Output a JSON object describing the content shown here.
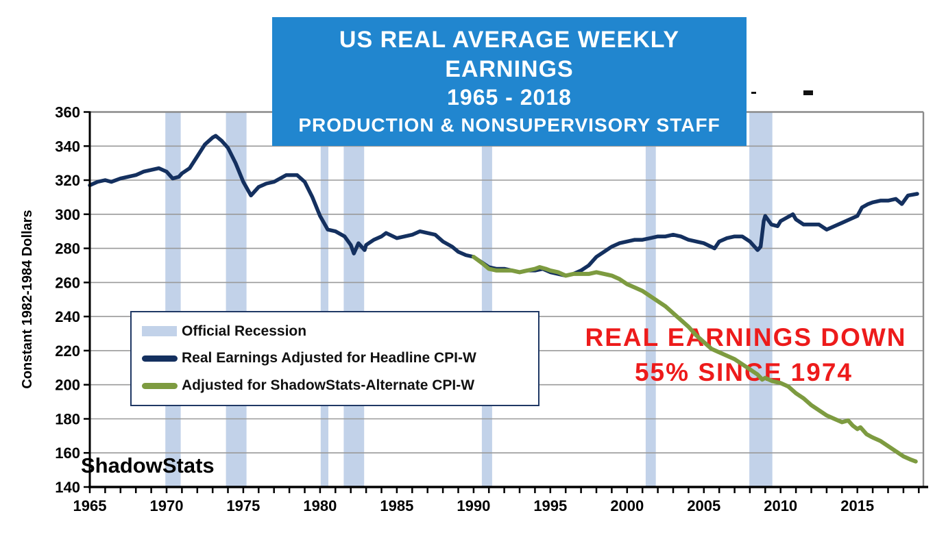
{
  "title_box": {
    "line1": "US REAL AVERAGE WEEKLY EARNINGS",
    "line2": "1965 - 2018",
    "line3": "PRODUCTION & NONSUPERVISORY STAFF"
  },
  "annotation": {
    "line1": "REAL EARNINGS DOWN",
    "line2": "55% SINCE 1974"
  },
  "watermark": "ShadowStats",
  "legend": {
    "items": [
      {
        "label": "Official Recession",
        "swatch": "band"
      },
      {
        "label": "Real Earnings Adjusted for Headline CPI-W",
        "swatch": "line-navy"
      },
      {
        "label": "Adjusted for ShadowStats-Alternate CPI-W",
        "swatch": "line-green"
      }
    ]
  },
  "colors": {
    "title_bg": "#2186cf",
    "annotation_red": "#ed1b1b",
    "recession_band": "#c2d2e9",
    "navy_line": "#14305f",
    "green_line": "#7d9b40",
    "grid": "#999999",
    "plot_border": "#8a8a8a",
    "axis": "#000000"
  },
  "chart_data": {
    "type": "line",
    "title": "US REAL AVERAGE WEEKLY EARNINGS 1965 - 2018, PRODUCTION & NONSUPERVISORY STAFF",
    "xlabel": "",
    "ylabel": "Constant 1982-1984 Dollars",
    "x_range": [
      1965,
      2019.3
    ],
    "y_range": [
      140,
      360
    ],
    "grid": "horizontal",
    "legend_position": "lower-left",
    "y_ticks": [
      360,
      340,
      320,
      300,
      280,
      260,
      240,
      220,
      200,
      180,
      160,
      140
    ],
    "x_tick_labels": [
      1965,
      1970,
      1975,
      1980,
      1985,
      1990,
      1995,
      2000,
      2005,
      2010,
      2015
    ],
    "x_minor_tick_step": 1,
    "recessions": [
      [
        1969.92,
        1970.92
      ],
      [
        1973.87,
        1975.21
      ],
      [
        1980.04,
        1980.54
      ],
      [
        1981.54,
        1982.87
      ],
      [
        1990.54,
        1991.21
      ],
      [
        2001.21,
        2001.87
      ],
      [
        2007.96,
        2009.46
      ]
    ],
    "series": [
      {
        "name": "Real Earnings Adjusted for Headline CPI-W",
        "color_key": "navy_line",
        "width": 5.5,
        "points": [
          [
            1965,
            317
          ],
          [
            1965.5,
            319
          ],
          [
            1966,
            320
          ],
          [
            1966.4,
            319
          ],
          [
            1967,
            321
          ],
          [
            1967.5,
            322
          ],
          [
            1968,
            323
          ],
          [
            1968.5,
            325
          ],
          [
            1969,
            326
          ],
          [
            1969.5,
            327
          ],
          [
            1970,
            325
          ],
          [
            1970.4,
            321
          ],
          [
            1970.8,
            322
          ],
          [
            1971,
            324
          ],
          [
            1971.5,
            327
          ],
          [
            1972,
            334
          ],
          [
            1972.5,
            341
          ],
          [
            1973,
            345
          ],
          [
            1973.2,
            346
          ],
          [
            1973.6,
            343
          ],
          [
            1974,
            339
          ],
          [
            1974.5,
            330
          ],
          [
            1975,
            319
          ],
          [
            1975.5,
            311
          ],
          [
            1976,
            316
          ],
          [
            1976.5,
            318
          ],
          [
            1977,
            319
          ],
          [
            1977.8,
            323
          ],
          [
            1978.5,
            323
          ],
          [
            1979,
            319
          ],
          [
            1979.5,
            310
          ],
          [
            1980,
            299
          ],
          [
            1980.5,
            291
          ],
          [
            1981,
            290
          ],
          [
            1981.6,
            287
          ],
          [
            1982,
            282
          ],
          [
            1982.2,
            277
          ],
          [
            1982.5,
            283
          ],
          [
            1982.9,
            279
          ],
          [
            1983,
            282
          ],
          [
            1983.5,
            285
          ],
          [
            1984,
            287
          ],
          [
            1984.3,
            289
          ],
          [
            1985,
            286
          ],
          [
            1985.5,
            287
          ],
          [
            1986,
            288
          ],
          [
            1986.5,
            290
          ],
          [
            1987,
            289
          ],
          [
            1987.5,
            288
          ],
          [
            1988,
            284
          ],
          [
            1988.6,
            281
          ],
          [
            1989,
            278
          ],
          [
            1989.5,
            276
          ],
          [
            1990,
            275
          ],
          [
            1990.5,
            272
          ],
          [
            1991,
            269
          ],
          [
            1991.5,
            268
          ],
          [
            1992,
            268
          ],
          [
            1992.5,
            267
          ],
          [
            1993,
            266
          ],
          [
            1993.5,
            267
          ],
          [
            1994,
            267
          ],
          [
            1994.5,
            268
          ],
          [
            1995,
            266
          ],
          [
            1995.5,
            265
          ],
          [
            1996,
            264
          ],
          [
            1996.5,
            265
          ],
          [
            1997,
            267
          ],
          [
            1997.5,
            270
          ],
          [
            1998,
            275
          ],
          [
            1998.5,
            278
          ],
          [
            1999,
            281
          ],
          [
            1999.5,
            283
          ],
          [
            2000,
            284
          ],
          [
            2000.5,
            285
          ],
          [
            2001,
            285
          ],
          [
            2001.5,
            286
          ],
          [
            2002,
            287
          ],
          [
            2002.5,
            287
          ],
          [
            2003,
            288
          ],
          [
            2003.5,
            287
          ],
          [
            2004,
            285
          ],
          [
            2004.5,
            284
          ],
          [
            2005,
            283
          ],
          [
            2005.7,
            280
          ],
          [
            2006,
            284
          ],
          [
            2006.5,
            286
          ],
          [
            2007,
            287
          ],
          [
            2007.5,
            287
          ],
          [
            2008,
            284
          ],
          [
            2008.5,
            279
          ],
          [
            2008.7,
            281
          ],
          [
            2008.9,
            296
          ],
          [
            2009,
            299
          ],
          [
            2009.4,
            294
          ],
          [
            2009.8,
            293
          ],
          [
            2010,
            296
          ],
          [
            2010.8,
            300
          ],
          [
            2011,
            297
          ],
          [
            2011.5,
            294
          ],
          [
            2012,
            294
          ],
          [
            2012.5,
            294
          ],
          [
            2013,
            291
          ],
          [
            2013.5,
            293
          ],
          [
            2014,
            295
          ],
          [
            2014.5,
            297
          ],
          [
            2015,
            299
          ],
          [
            2015.3,
            304
          ],
          [
            2015.7,
            306
          ],
          [
            2016,
            307
          ],
          [
            2016.5,
            308
          ],
          [
            2017,
            308
          ],
          [
            2017.5,
            309
          ],
          [
            2017.9,
            306
          ],
          [
            2018.3,
            311
          ],
          [
            2018.9,
            312
          ]
        ]
      },
      {
        "name": "Adjusted for ShadowStats-Alternate CPI-W",
        "color_key": "green_line",
        "width": 6,
        "points": [
          [
            1990,
            275
          ],
          [
            1990.3,
            273
          ],
          [
            1990.6,
            271
          ],
          [
            1991,
            268
          ],
          [
            1991.5,
            267
          ],
          [
            1992,
            267
          ],
          [
            1992.5,
            267
          ],
          [
            1993,
            266
          ],
          [
            1993.5,
            267
          ],
          [
            1994,
            268
          ],
          [
            1994.3,
            269
          ],
          [
            1994.7,
            268
          ],
          [
            1995,
            267
          ],
          [
            1995.5,
            266
          ],
          [
            1996,
            264
          ],
          [
            1996.5,
            265
          ],
          [
            1997,
            265
          ],
          [
            1997.5,
            265
          ],
          [
            1998,
            266
          ],
          [
            1998.5,
            265
          ],
          [
            1999,
            264
          ],
          [
            1999.5,
            262
          ],
          [
            2000,
            259
          ],
          [
            2000.5,
            257
          ],
          [
            2001,
            255
          ],
          [
            2001.5,
            252
          ],
          [
            2002,
            249
          ],
          [
            2002.5,
            246
          ],
          [
            2003,
            242
          ],
          [
            2003.5,
            238
          ],
          [
            2004,
            234
          ],
          [
            2004.5,
            229
          ],
          [
            2005,
            225
          ],
          [
            2005.5,
            221
          ],
          [
            2006,
            219
          ],
          [
            2006.5,
            217
          ],
          [
            2007,
            215
          ],
          [
            2007.5,
            212
          ],
          [
            2008,
            209
          ],
          [
            2008.5,
            206
          ],
          [
            2008.8,
            203
          ],
          [
            2009,
            204
          ],
          [
            2009.5,
            202
          ],
          [
            2010,
            201
          ],
          [
            2010.5,
            199
          ],
          [
            2011,
            195
          ],
          [
            2011.5,
            192
          ],
          [
            2012,
            188
          ],
          [
            2012.5,
            185
          ],
          [
            2013,
            182
          ],
          [
            2013.5,
            180
          ],
          [
            2014,
            178
          ],
          [
            2014.4,
            179
          ],
          [
            2014.7,
            176
          ],
          [
            2015,
            174
          ],
          [
            2015.2,
            175
          ],
          [
            2015.6,
            171
          ],
          [
            2016,
            169
          ],
          [
            2016.5,
            167
          ],
          [
            2017,
            164
          ],
          [
            2017.5,
            161
          ],
          [
            2018,
            158
          ],
          [
            2018.5,
            156
          ],
          [
            2018.8,
            155
          ]
        ]
      }
    ]
  }
}
